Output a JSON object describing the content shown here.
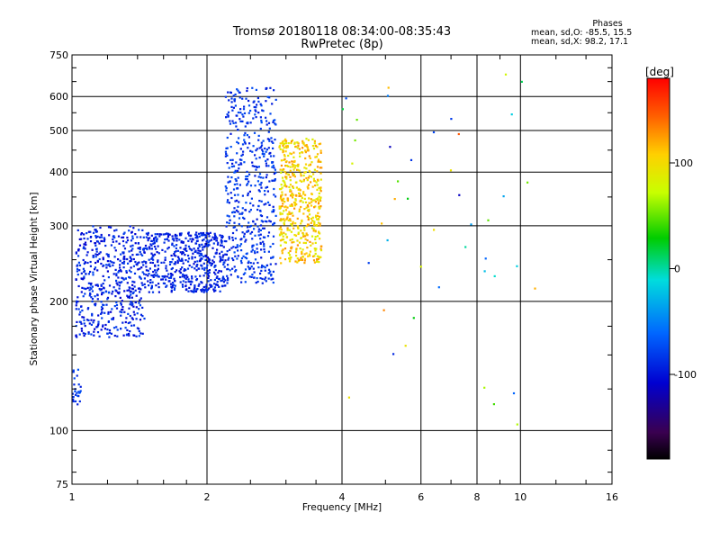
{
  "header": {
    "line1": "Tromsø 20180118 08:34:00-08:35:43",
    "line2": "RwPretec (8p)"
  },
  "stats": {
    "heading": "Phases",
    "line_o": "mean, sd,O: -85.5, 15.5",
    "line_x": "mean, sd,X:  98.2, 17.1"
  },
  "colorbar": {
    "unit": "[deg]",
    "ticks": [
      "100",
      "0",
      "-100"
    ],
    "range": [
      -180,
      180
    ]
  },
  "chart_data": {
    "type": "scatter",
    "xlabel": "Frequency [MHz]",
    "ylabel": "Stationary phase Virtual Height [km]",
    "xscale": "log",
    "yscale": "log",
    "xlim": [
      1,
      16
    ],
    "ylim": [
      75,
      750
    ],
    "xticks": [
      "1",
      "2",
      "4",
      "6",
      "8",
      "10",
      "16"
    ],
    "yticks": [
      "75",
      "100",
      "200",
      "300",
      "400",
      "500",
      "600",
      "750"
    ],
    "grid": true,
    "color_by": "phase_deg",
    "clusters": [
      {
        "name": "O-mode trace, low frequency band",
        "x_range": [
          1.02,
          1.45
        ],
        "y_range": [
          165,
          300
        ],
        "phase_range": [
          -110,
          -75
        ],
        "density": "high"
      },
      {
        "name": "O-mode trace, flat floor",
        "x_range": [
          1.45,
          2.2
        ],
        "y_range": [
          210,
          290
        ],
        "phase_range": [
          -105,
          -80
        ],
        "density": "high"
      },
      {
        "name": "O-mode trace, rising to critical frequency",
        "x_range": [
          2.2,
          2.85
        ],
        "y_range": [
          220,
          630
        ],
        "phase_range": [
          -100,
          -70
        ],
        "density": "high"
      },
      {
        "name": "X-mode trace",
        "x_range": [
          2.9,
          3.6
        ],
        "y_range": [
          245,
          480
        ],
        "phase_range": [
          80,
          130
        ],
        "density": "high"
      },
      {
        "name": "Low-height echoes near 1 MHz",
        "x_range": [
          1.0,
          1.05
        ],
        "y_range": [
          115,
          140
        ],
        "phase_range": [
          -95,
          -70
        ],
        "density": "low"
      },
      {
        "name": "Scattered echoes",
        "x_range": [
          3.9,
          11
        ],
        "y_range": [
          100,
          690
        ],
        "phase_range": [
          -130,
          150
        ],
        "density": "sparse"
      }
    ]
  }
}
